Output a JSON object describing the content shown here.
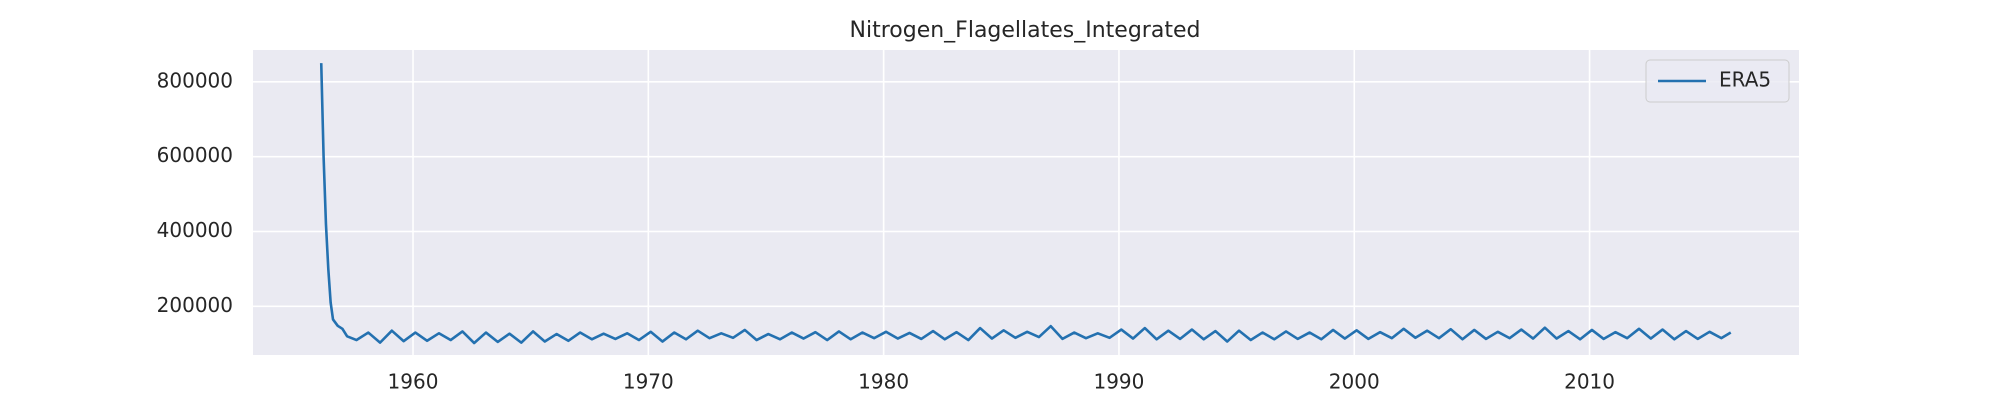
{
  "chart_data": {
    "type": "line",
    "title": "Nitrogen_Flagellates_Integrated",
    "x": [
      1956.1,
      1956.2,
      1956.3,
      1956.4,
      1956.5,
      1956.6,
      1956.8,
      1957.0,
      1957.2,
      1957.6,
      1958.1,
      1958.6,
      1959.1,
      1959.6,
      1960.1,
      1960.6,
      1961.1,
      1961.6,
      1962.1,
      1962.6,
      1963.1,
      1963.6,
      1964.1,
      1964.6,
      1965.1,
      1965.6,
      1966.1,
      1966.6,
      1967.1,
      1967.6,
      1968.1,
      1968.6,
      1969.1,
      1969.6,
      1970.1,
      1970.6,
      1971.1,
      1971.6,
      1972.1,
      1972.6,
      1973.1,
      1973.6,
      1974.1,
      1974.6,
      1975.1,
      1975.6,
      1976.1,
      1976.6,
      1977.1,
      1977.6,
      1978.1,
      1978.6,
      1979.1,
      1979.6,
      1980.1,
      1980.6,
      1981.1,
      1981.6,
      1982.1,
      1982.6,
      1983.1,
      1983.6,
      1984.1,
      1984.6,
      1985.1,
      1985.6,
      1986.1,
      1986.6,
      1987.1,
      1987.6,
      1988.1,
      1988.6,
      1989.1,
      1989.6,
      1990.1,
      1990.6,
      1991.1,
      1991.6,
      1992.1,
      1992.6,
      1993.1,
      1993.6,
      1994.1,
      1994.6,
      1995.1,
      1995.6,
      1996.1,
      1996.6,
      1997.1,
      1997.6,
      1998.1,
      1998.6,
      1999.1,
      1999.6,
      2000.1,
      2000.6,
      2001.1,
      2001.6,
      2002.1,
      2002.6,
      2003.1,
      2003.6,
      2004.1,
      2004.6,
      2005.1,
      2005.6,
      2006.1,
      2006.6,
      2007.1,
      2007.6,
      2008.1,
      2008.6,
      2009.1,
      2009.6,
      2010.1,
      2010.6,
      2011.1,
      2011.6,
      2012.1,
      2012.6,
      2013.1,
      2013.6,
      2014.1,
      2014.6,
      2015.1,
      2015.6,
      2016.0
    ],
    "series": [
      {
        "name": "ERA5",
        "color": "#2471b0",
        "values": [
          850000,
          600000,
          420000,
          300000,
          210000,
          165000,
          148000,
          140000,
          120000,
          110000,
          130000,
          103000,
          135000,
          107000,
          130000,
          108000,
          128000,
          110000,
          133000,
          102000,
          130000,
          105000,
          127000,
          103000,
          133000,
          106000,
          126000,
          108000,
          130000,
          112000,
          127000,
          113000,
          128000,
          110000,
          132000,
          106000,
          130000,
          112000,
          135000,
          115000,
          128000,
          116000,
          137000,
          110000,
          126000,
          112000,
          130000,
          114000,
          131000,
          110000,
          133000,
          112000,
          130000,
          115000,
          132000,
          114000,
          129000,
          113000,
          134000,
          112000,
          131000,
          110000,
          142000,
          114000,
          136000,
          116000,
          132000,
          118000,
          147000,
          113000,
          130000,
          115000,
          128000,
          116000,
          138000,
          114000,
          142000,
          112000,
          135000,
          113000,
          138000,
          112000,
          134000,
          106000,
          135000,
          110000,
          130000,
          112000,
          133000,
          113000,
          130000,
          112000,
          137000,
          114000,
          136000,
          113000,
          131000,
          115000,
          140000,
          116000,
          135000,
          115000,
          139000,
          112000,
          137000,
          113000,
          132000,
          115000,
          138000,
          114000,
          143000,
          114000,
          134000,
          112000,
          137000,
          113000,
          131000,
          115000,
          140000,
          114000,
          138000,
          112000,
          134000,
          113000,
          132000,
          115000,
          130000
        ]
      }
    ],
    "xlim": [
      1953.2,
      2018.9
    ],
    "xticks": [
      1960,
      1970,
      1980,
      1990,
      2000,
      2010
    ],
    "ylim": [
      70000,
      885000
    ],
    "yticks": [
      200000,
      400000,
      600000,
      800000
    ],
    "grid": true,
    "legend": "upper right"
  }
}
